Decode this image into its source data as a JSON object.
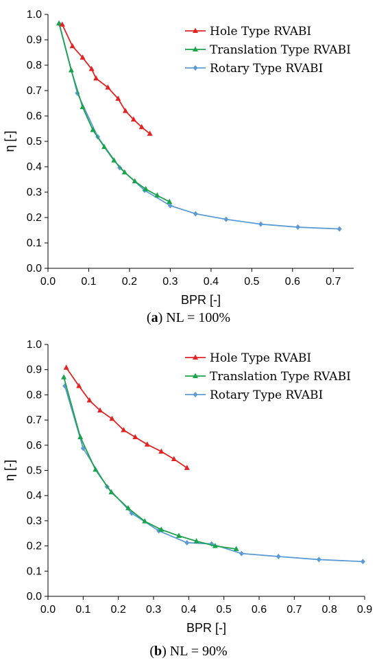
{
  "chart_data": [
    {
      "type": "line",
      "caption_letter": "a",
      "caption_rest": ") NL = 100%",
      "xlabel": "BPR [-]",
      "ylabel": "η [-]",
      "xlim": [
        0.0,
        0.75
      ],
      "ylim": [
        0.0,
        1.0
      ],
      "xticks": [
        "0.0",
        "0.1",
        "0.2",
        "0.3",
        "0.4",
        "0.5",
        "0.6",
        "0.7"
      ],
      "yticks": [
        "0.0",
        "0.1",
        "0.2",
        "0.3",
        "0.4",
        "0.5",
        "0.6",
        "0.7",
        "0.8",
        "0.9",
        "1.0"
      ],
      "legend_position": "top-right",
      "series": [
        {
          "name": "Hole Type RVABI",
          "color": "#e32222",
          "marker": "triangle",
          "x": [
            0.035,
            0.06,
            0.085,
            0.107,
            0.118,
            0.147,
            0.172,
            0.19,
            0.21,
            0.23,
            0.25
          ],
          "y": [
            0.96,
            0.875,
            0.83,
            0.785,
            0.748,
            0.712,
            0.668,
            0.62,
            0.586,
            0.556,
            0.53
          ]
        },
        {
          "name": "Translation Type RVABI",
          "color": "#1aa34a",
          "marker": "triangle",
          "x": [
            0.027,
            0.057,
            0.085,
            0.11,
            0.138,
            0.162,
            0.188,
            0.213,
            0.24,
            0.268,
            0.298
          ],
          "y": [
            0.965,
            0.78,
            0.635,
            0.545,
            0.478,
            0.425,
            0.378,
            0.343,
            0.312,
            0.287,
            0.262
          ]
        },
        {
          "name": "Rotary Type RVABI",
          "color": "#5b9bd5",
          "marker": "diamond",
          "x": [
            0.028,
            0.072,
            0.122,
            0.176,
            0.237,
            0.3,
            0.362,
            0.437,
            0.522,
            0.613,
            0.715
          ],
          "y": [
            0.962,
            0.69,
            0.518,
            0.396,
            0.307,
            0.247,
            0.215,
            0.193,
            0.174,
            0.162,
            0.155
          ]
        }
      ]
    },
    {
      "type": "line",
      "caption_letter": "b",
      "caption_rest": ") NL = 90%",
      "xlabel": "BPR [-]",
      "ylabel": "η [-]",
      "xlim": [
        0.0,
        0.9
      ],
      "ylim": [
        0.0,
        1.0
      ],
      "xticks": [
        "0.0",
        "0.1",
        "0.2",
        "0.3",
        "0.4",
        "0.5",
        "0.6",
        "0.7",
        "0.8",
        "0.9"
      ],
      "yticks": [
        "0.0",
        "0.1",
        "0.2",
        "0.3",
        "0.4",
        "0.5",
        "0.6",
        "0.7",
        "0.8",
        "0.9",
        "1.0"
      ],
      "legend_position": "top-right",
      "series": [
        {
          "name": "Hole Type RVABI",
          "color": "#e32222",
          "marker": "triangle",
          "x": [
            0.052,
            0.088,
            0.118,
            0.148,
            0.182,
            0.215,
            0.248,
            0.282,
            0.322,
            0.358,
            0.395
          ],
          "y": [
            0.908,
            0.835,
            0.778,
            0.738,
            0.705,
            0.66,
            0.632,
            0.603,
            0.575,
            0.545,
            0.51
          ]
        },
        {
          "name": "Translation Type RVABI",
          "color": "#1aa34a",
          "marker": "triangle",
          "x": [
            0.045,
            0.092,
            0.135,
            0.18,
            0.228,
            0.275,
            0.322,
            0.372,
            0.422,
            0.475,
            0.535
          ],
          "y": [
            0.87,
            0.632,
            0.503,
            0.413,
            0.35,
            0.298,
            0.265,
            0.24,
            0.219,
            0.2,
            0.188
          ]
        },
        {
          "name": "Rotary Type RVABI",
          "color": "#5b9bd5",
          "marker": "diamond",
          "x": [
            0.048,
            0.1,
            0.168,
            0.238,
            0.315,
            0.395,
            0.465,
            0.55,
            0.655,
            0.77,
            0.895
          ],
          "y": [
            0.835,
            0.588,
            0.435,
            0.33,
            0.26,
            0.213,
            0.208,
            0.17,
            0.158,
            0.146,
            0.138
          ]
        }
      ]
    }
  ]
}
